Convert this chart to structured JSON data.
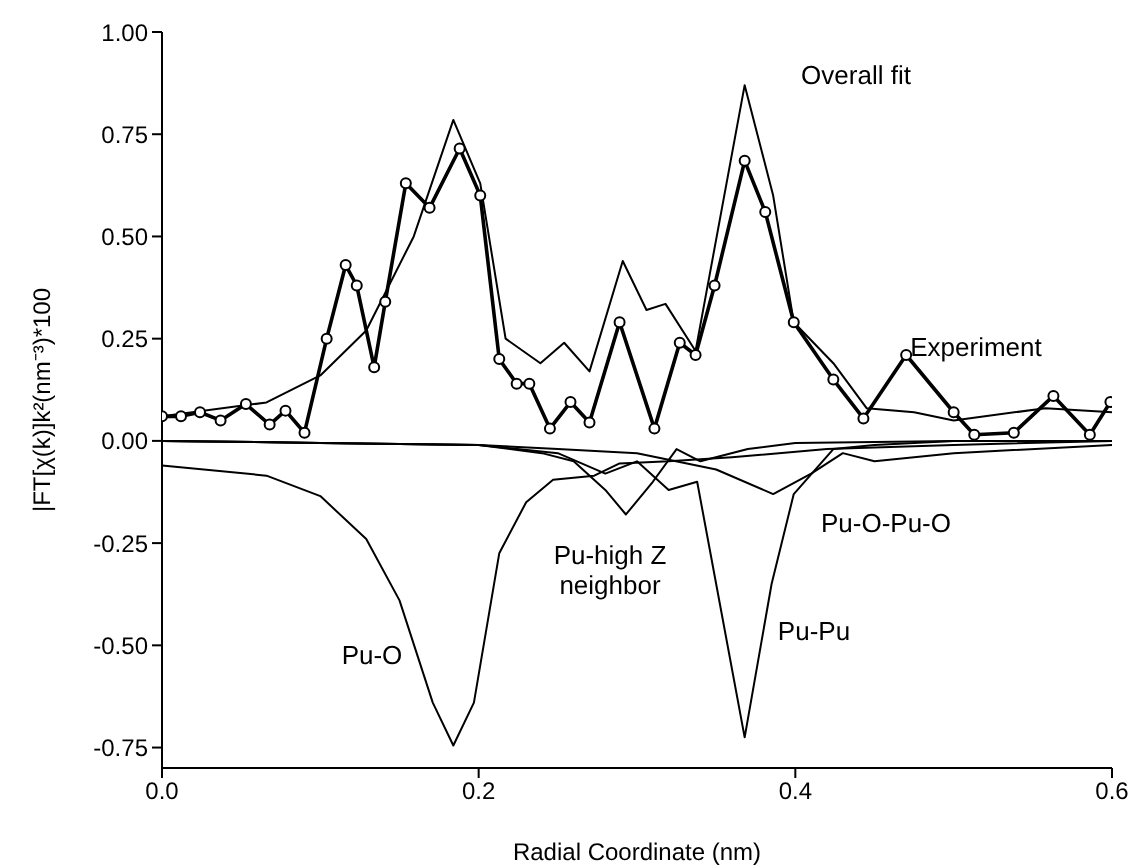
{
  "chart_data": {
    "type": "line",
    "xlabel": "Radial Coordinate (nm)",
    "ylabel": "|FT[χ(k)]k²(nm⁻³)*100",
    "legend": false,
    "grid": false,
    "marker": "none",
    "xlim": [
      0,
      0.6
    ],
    "xticks": [
      {
        "value": 0,
        "label": "0.0"
      },
      {
        "value": 0.2,
        "label": "0.2"
      },
      {
        "value": 0.4,
        "label": "0.4"
      },
      {
        "value": 0.6,
        "label": "0.6"
      }
    ],
    "ylim": [
      -0.8,
      1.0
    ],
    "yticks": [
      {
        "value": -0.75,
        "label": "-0.75"
      },
      {
        "value": -0.5,
        "label": "-0.50"
      },
      {
        "value": -0.25,
        "label": "-0.25"
      },
      {
        "value": 0,
        "label": "0.00"
      },
      {
        "value": 0.25,
        "label": "0.25"
      },
      {
        "value": 0.5,
        "label": "0.50"
      },
      {
        "value": 0.75,
        "label": "0.75"
      },
      {
        "value": 1,
        "label": "1.00"
      }
    ],
    "series": [
      {
        "name": "Experiment",
        "color": "#000000",
        "marker": "circle",
        "x": [
          0,
          0.012,
          0.024,
          0.037,
          0.053,
          0.068,
          0.078,
          0.09,
          0.104,
          0.116,
          0.123,
          0.134,
          0.141,
          0.154,
          0.169,
          0.188,
          0.201,
          0.213,
          0.224,
          0.232,
          0.245,
          0.258,
          0.27,
          0.289,
          0.311,
          0.327,
          0.337,
          0.349,
          0.368,
          0.381,
          0.399,
          0.424,
          0.443,
          0.47,
          0.5,
          0.513,
          0.538,
          0.563,
          0.586,
          0.599
        ],
        "values": [
          0.06,
          0.06,
          0.07,
          0.05,
          0.09,
          0.04,
          0.074,
          0.02,
          0.25,
          0.43,
          0.38,
          0.18,
          0.34,
          0.63,
          0.57,
          0.715,
          0.6,
          0.2,
          0.14,
          0.14,
          0.03,
          0.095,
          0.045,
          0.29,
          0.03,
          0.24,
          0.21,
          0.38,
          0.685,
          0.56,
          0.29,
          0.15,
          0.055,
          0.21,
          0.07,
          0.015,
          0.02,
          0.11,
          0.015,
          0.095
        ]
      },
      {
        "name": "Overall fit",
        "color": "#000000",
        "x": [
          0,
          0.066,
          0.1,
          0.129,
          0.159,
          0.184,
          0.201,
          0.217,
          0.239,
          0.254,
          0.27,
          0.291,
          0.306,
          0.318,
          0.337,
          0.368,
          0.386,
          0.399,
          0.424,
          0.445,
          0.475,
          0.5,
          0.558,
          0.6
        ],
        "values": [
          0.06,
          0.094,
          0.16,
          0.27,
          0.5,
          0.785,
          0.63,
          0.25,
          0.19,
          0.24,
          0.17,
          0.44,
          0.32,
          0.335,
          0.22,
          0.87,
          0.6,
          0.29,
          0.19,
          0.08,
          0.07,
          0.05,
          0.08,
          0.07
        ]
      },
      {
        "name": "Pu-O",
        "color": "#000000",
        "x": [
          0,
          0.066,
          0.1,
          0.129,
          0.15,
          0.171,
          0.184,
          0.197,
          0.213,
          0.23,
          0.247,
          0.273,
          0.289,
          0.32,
          0.36,
          0.42,
          0.5,
          0.6
        ],
        "values": [
          -0.06,
          -0.085,
          -0.135,
          -0.24,
          -0.39,
          -0.64,
          -0.745,
          -0.64,
          -0.275,
          -0.15,
          -0.095,
          -0.085,
          -0.055,
          -0.05,
          -0.04,
          -0.02,
          -0.01,
          0
        ]
      },
      {
        "name": "Pu-high Z neighbor",
        "color": "#000000",
        "x": [
          0,
          0.1,
          0.2,
          0.24,
          0.26,
          0.28,
          0.293,
          0.31,
          0.325,
          0.34,
          0.37,
          0.4,
          0.5,
          0.6
        ],
        "values": [
          0,
          -0.005,
          -0.01,
          -0.03,
          -0.05,
          -0.12,
          -0.18,
          -0.1,
          -0.02,
          -0.05,
          -0.02,
          -0.005,
          0,
          0
        ]
      },
      {
        "name": "Pu-Pu",
        "color": "#000000",
        "x": [
          0,
          0.1,
          0.2,
          0.25,
          0.28,
          0.3,
          0.32,
          0.338,
          0.35,
          0.368,
          0.385,
          0.399,
          0.424,
          0.45,
          0.5,
          0.6
        ],
        "values": [
          0,
          -0.005,
          -0.01,
          -0.03,
          -0.08,
          -0.05,
          -0.12,
          -0.1,
          -0.35,
          -0.725,
          -0.35,
          -0.13,
          -0.02,
          -0.01,
          0,
          0
        ]
      },
      {
        "name": "Pu-O-Pu-O",
        "color": "#000000",
        "x": [
          0,
          0.1,
          0.2,
          0.25,
          0.3,
          0.35,
          0.386,
          0.41,
          0.43,
          0.45,
          0.5,
          0.6
        ],
        "values": [
          0,
          -0.005,
          -0.01,
          -0.02,
          -0.03,
          -0.07,
          -0.13,
          -0.08,
          -0.03,
          -0.05,
          -0.03,
          -0.01
        ]
      }
    ]
  }
}
